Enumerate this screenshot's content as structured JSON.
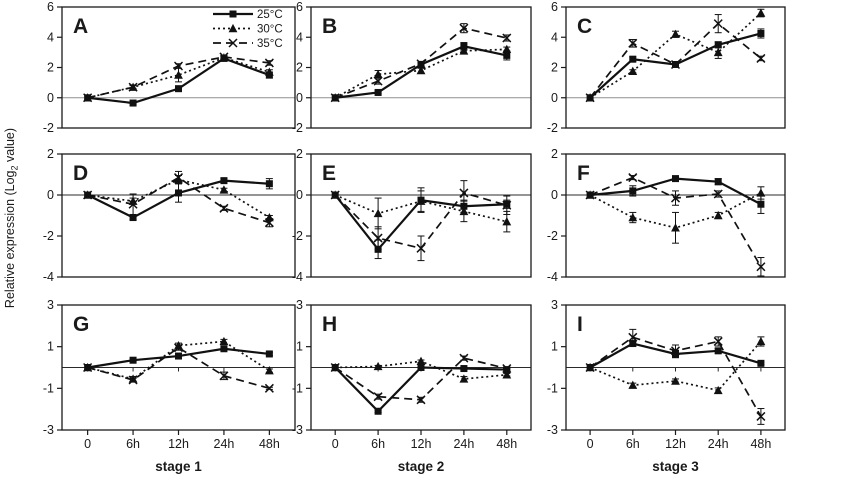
{
  "figure": {
    "y_axis_title": {
      "prefix": "Relative expression (Log",
      "sub": "2",
      "suffix": " value)"
    },
    "colors": {
      "series": "#111111",
      "frame": "#1a1a1a",
      "text": "#1a1a1a",
      "zero_line_row1": "#909090",
      "zero_line": "#2b2b2b",
      "background": "#ffffff"
    },
    "legend": {
      "items": [
        {
          "label": "25°C",
          "line": "solid",
          "marker": "square"
        },
        {
          "label": "30°C",
          "line": "dotted",
          "marker": "triangle"
        },
        {
          "label": "35°C",
          "line": "dashed",
          "marker": "x"
        }
      ]
    }
  },
  "chart_data": {
    "type": "line",
    "grid": "3x3",
    "title": "",
    "ylabel": "Relative expression (Log2 value)",
    "categories": [
      "0",
      "6h",
      "12h",
      "24h",
      "48h"
    ],
    "x_axis_stage_labels": [
      "stage 1",
      "stage 2",
      "stage 3"
    ],
    "legend_entries": [
      "25°C",
      "30°C",
      "35°C"
    ],
    "legend_position": "top-right of panel A",
    "panels": [
      {
        "panel": "A",
        "stage": "stage 1",
        "ylim": [
          -2,
          6
        ],
        "yticks": [
          6,
          4,
          2,
          0,
          -2
        ],
        "series": [
          {
            "name": "25°C",
            "values": [
              0,
              -0.35,
              0.6,
              2.6,
              1.5
            ],
            "errors": [
              0,
              0.05,
              0.1,
              0.15,
              0.2
            ]
          },
          {
            "name": "30°C",
            "values": [
              0,
              0.7,
              1.5,
              2.65,
              1.7
            ],
            "errors": [
              0,
              0.1,
              0.45,
              0.1,
              0.15
            ]
          },
          {
            "name": "35°C",
            "values": [
              0,
              0.7,
              2.1,
              2.7,
              2.3
            ],
            "errors": [
              0,
              0.15,
              0.15,
              0.1,
              0.15
            ]
          }
        ]
      },
      {
        "panel": "B",
        "stage": "stage 2",
        "ylim": [
          -2,
          6
        ],
        "yticks": [
          6,
          4,
          2,
          0,
          -2
        ],
        "series": [
          {
            "name": "25°C",
            "values": [
              0,
              0.35,
              2.2,
              3.4,
              2.8
            ],
            "errors": [
              0,
              0.1,
              0.2,
              0.25,
              0.3
            ]
          },
          {
            "name": "30°C",
            "values": [
              0,
              1.55,
              1.8,
              3.1,
              3.2
            ],
            "errors": [
              0,
              0.25,
              0.15,
              0.2,
              0.15
            ]
          },
          {
            "name": "35°C",
            "values": [
              0,
              1.1,
              2.25,
              4.6,
              3.95
            ],
            "errors": [
              0,
              0.2,
              0.15,
              0.3,
              0.2
            ]
          }
        ]
      },
      {
        "panel": "C",
        "stage": "stage 3",
        "ylim": [
          -2,
          6
        ],
        "yticks": [
          6,
          4,
          2,
          0,
          -2
        ],
        "series": [
          {
            "name": "25°C",
            "values": [
              0,
              2.55,
              2.2,
              3.5,
              4.25
            ],
            "errors": [
              0,
              0.15,
              0.1,
              0.2,
              0.3
            ]
          },
          {
            "name": "30°C",
            "values": [
              0,
              1.75,
              4.2,
              3.0,
              5.6
            ],
            "errors": [
              0,
              0.1,
              0.2,
              0.4,
              0.25
            ]
          },
          {
            "name": "35°C",
            "values": [
              0,
              3.6,
              2.2,
              4.9,
              2.6
            ],
            "errors": [
              0,
              0.25,
              0.1,
              0.6,
              0.15
            ]
          }
        ]
      },
      {
        "panel": "D",
        "stage": "stage 1",
        "ylim": [
          -4,
          2
        ],
        "yticks": [
          2,
          0,
          -2,
          -4
        ],
        "series": [
          {
            "name": "25°C",
            "values": [
              0,
              -1.1,
              0.1,
              0.7,
              0.55
            ],
            "errors": [
              0,
              0.1,
              0.45,
              0.1,
              0.25
            ]
          },
          {
            "name": "30°C",
            "values": [
              0,
              -0.3,
              0.75,
              0.25,
              -1.1
            ],
            "errors": [
              0,
              0.15,
              0.2,
              0.08,
              0.1
            ]
          },
          {
            "name": "35°C",
            "values": [
              0,
              -0.45,
              0.85,
              -0.65,
              -1.35
            ],
            "errors": [
              0,
              0.5,
              0.3,
              0.1,
              0.2
            ]
          }
        ]
      },
      {
        "panel": "E",
        "stage": "stage 2",
        "ylim": [
          -4,
          2
        ],
        "yticks": [
          2,
          0,
          -2,
          -4
        ],
        "series": [
          {
            "name": "25°C",
            "values": [
              0,
              -2.65,
              -0.25,
              -0.55,
              -0.45
            ],
            "errors": [
              0,
              0.45,
              0.6,
              0.3,
              0.2
            ]
          },
          {
            "name": "30°C",
            "values": [
              0,
              -0.9,
              -0.3,
              -0.8,
              -1.3
            ],
            "errors": [
              0,
              0.75,
              0.5,
              0.5,
              0.5
            ]
          },
          {
            "name": "35°C",
            "values": [
              0,
              -2.1,
              -2.6,
              0.1,
              -0.5
            ],
            "errors": [
              0,
              0.55,
              0.6,
              0.6,
              0.45
            ]
          }
        ]
      },
      {
        "panel": "F",
        "stage": "stage 3",
        "ylim": [
          -4,
          2
        ],
        "yticks": [
          2,
          0,
          -2,
          -4
        ],
        "series": [
          {
            "name": "25°C",
            "values": [
              0,
              0.2,
              0.8,
              0.65,
              -0.45
            ],
            "errors": [
              0,
              0.25,
              0.1,
              0.15,
              0.45
            ]
          },
          {
            "name": "30°C",
            "values": [
              0,
              -1.1,
              -1.6,
              -1.0,
              0.1
            ],
            "errors": [
              0,
              0.25,
              0.75,
              0.15,
              0.3
            ]
          },
          {
            "name": "35°C",
            "values": [
              0,
              0.85,
              -0.15,
              0.05,
              -3.5
            ],
            "errors": [
              0,
              0.1,
              0.35,
              0.15,
              0.45
            ]
          }
        ]
      },
      {
        "panel": "G",
        "stage": "stage 1",
        "ylim": [
          -3,
          3
        ],
        "yticks": [
          3,
          1,
          -1,
          -3
        ],
        "series": [
          {
            "name": "25°C",
            "values": [
              0,
              0.35,
              0.55,
              0.9,
              0.65
            ],
            "errors": [
              0,
              0.05,
              0.1,
              0.08,
              0.08
            ]
          },
          {
            "name": "30°C",
            "values": [
              0,
              -0.55,
              1.05,
              1.25,
              -0.15
            ],
            "errors": [
              0,
              0.12,
              0.12,
              0.1,
              0.08
            ]
          },
          {
            "name": "35°C",
            "values": [
              0,
              -0.6,
              0.95,
              -0.4,
              -1.0
            ],
            "errors": [
              0,
              0.08,
              0.12,
              0.18,
              0.05
            ]
          }
        ]
      },
      {
        "panel": "H",
        "stage": "stage 2",
        "ylim": [
          -3,
          3
        ],
        "yticks": [
          3,
          1,
          -1,
          -3
        ],
        "series": [
          {
            "name": "25°C",
            "values": [
              0,
              -2.1,
              0.0,
              -0.05,
              -0.1
            ],
            "errors": [
              0,
              0.06,
              0.05,
              0.06,
              0.05
            ]
          },
          {
            "name": "30°C",
            "values": [
              0,
              0.05,
              0.3,
              -0.55,
              -0.35
            ],
            "errors": [
              0,
              0.05,
              0.06,
              0.12,
              0.06
            ]
          },
          {
            "name": "35°C",
            "values": [
              0,
              -1.4,
              -1.55,
              0.45,
              -0.05
            ],
            "errors": [
              0,
              0.12,
              0.12,
              0.1,
              0.06
            ]
          }
        ]
      },
      {
        "panel": "I",
        "stage": "stage 3",
        "ylim": [
          -3,
          3
        ],
        "yticks": [
          3,
          1,
          -1,
          -3
        ],
        "series": [
          {
            "name": "25°C",
            "values": [
              0,
              1.15,
              0.65,
              0.8,
              0.2
            ],
            "errors": [
              0,
              0.12,
              0.18,
              0.12,
              0.06
            ]
          },
          {
            "name": "30°C",
            "values": [
              0,
              -0.85,
              -0.65,
              -1.1,
              1.25
            ],
            "errors": [
              0,
              0.1,
              0.1,
              0.12,
              0.22
            ]
          },
          {
            "name": "35°C",
            "values": [
              0,
              1.45,
              0.8,
              1.25,
              -2.35
            ],
            "errors": [
              0,
              0.38,
              0.28,
              0.22,
              0.38
            ]
          }
        ]
      }
    ]
  }
}
